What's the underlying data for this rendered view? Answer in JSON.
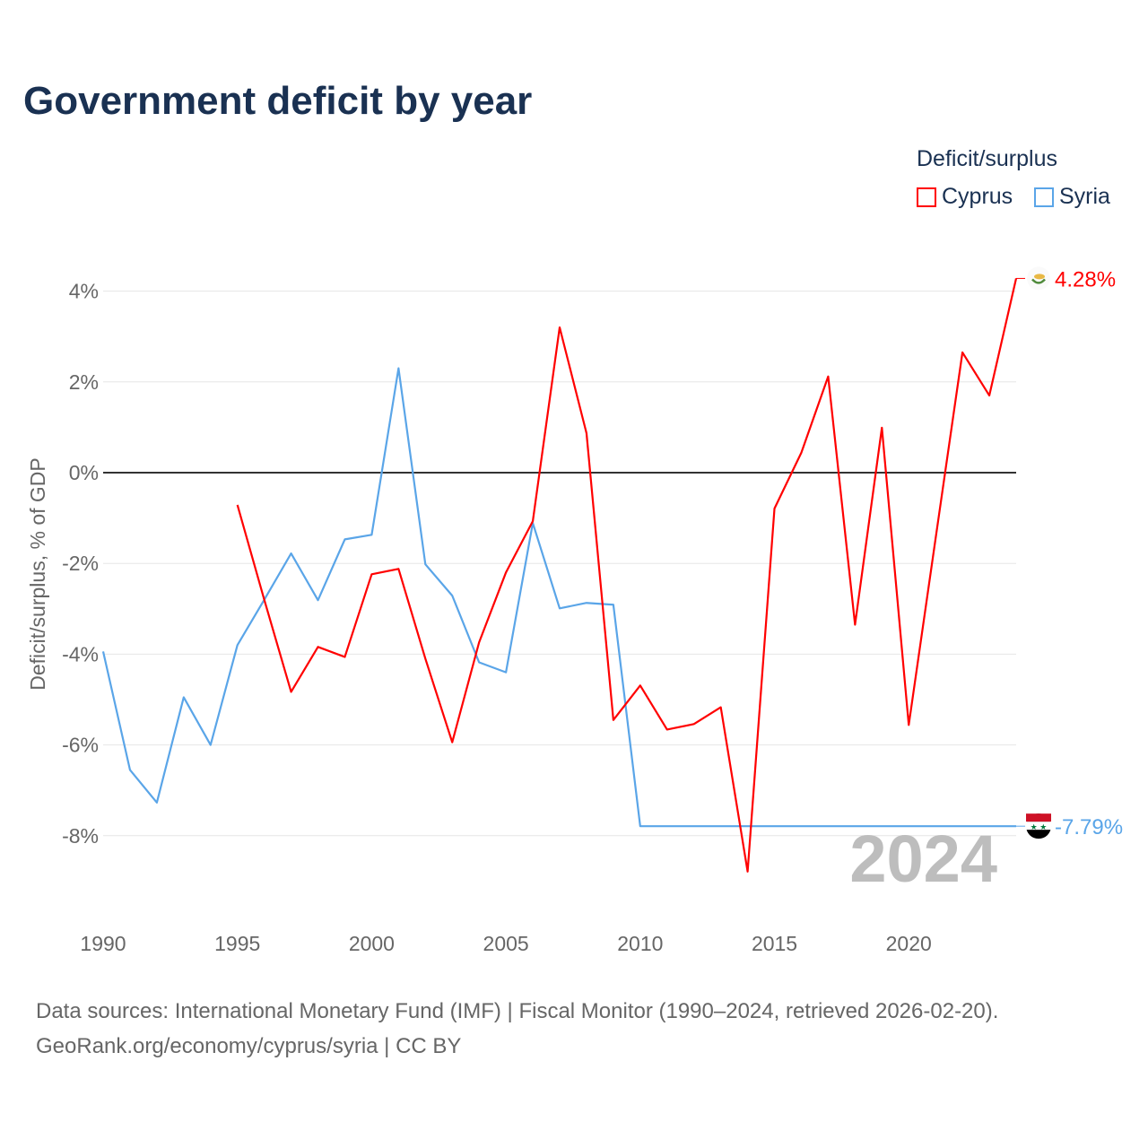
{
  "chart_data": {
    "type": "line",
    "title": "Government deficit by year",
    "ylabel": "Deficit/surplus, % of GDP",
    "xlabel": "",
    "xlim": [
      1990,
      2024
    ],
    "ylim": [
      -9.6,
      4.6
    ],
    "yticks": [
      4,
      2,
      0,
      -2,
      -4,
      -6,
      -8
    ],
    "ytick_labels": [
      "4%",
      "2%",
      "0%",
      "-2%",
      "-4%",
      "-6%",
      "-8%"
    ],
    "xticks": [
      1990,
      1995,
      2000,
      2005,
      2010,
      2015,
      2020
    ],
    "xtick_labels": [
      "1990",
      "1995",
      "2000",
      "2005",
      "2010",
      "2015",
      "2020"
    ],
    "grid": true,
    "legend": {
      "title": "Deficit/surplus",
      "position": "top-right"
    },
    "year_watermark": "2024",
    "series": [
      {
        "name": "Cyprus",
        "color": "#ff0000",
        "end_label": "4.28%",
        "flag": "cyprus",
        "x": [
          1995,
          1996,
          1997,
          1998,
          1999,
          2000,
          2001,
          2002,
          2003,
          2004,
          2005,
          2006,
          2007,
          2008,
          2009,
          2010,
          2011,
          2012,
          2013,
          2014,
          2015,
          2016,
          2017,
          2018,
          2019,
          2020,
          2021,
          2022,
          2023,
          2024
        ],
        "values": [
          -0.71,
          -2.8,
          -4.83,
          -3.84,
          -4.06,
          -2.24,
          -2.12,
          -4.1,
          -5.94,
          -3.74,
          -2.2,
          -1.07,
          3.2,
          0.87,
          -5.45,
          -4.69,
          -5.66,
          -5.54,
          -5.17,
          -8.79,
          -0.79,
          0.44,
          2.12,
          -3.35,
          0.99,
          -5.56,
          -1.45,
          2.65,
          1.7,
          4.28
        ]
      },
      {
        "name": "Syria",
        "color": "#5aa5e8",
        "end_label": "-7.79%",
        "flag": "syria",
        "x": [
          1990,
          1991,
          1992,
          1993,
          1994,
          1995,
          1996,
          1997,
          1998,
          1999,
          2000,
          2001,
          2002,
          2003,
          2004,
          2005,
          2006,
          2007,
          2008,
          2009,
          2010,
          2011,
          2012,
          2013,
          2014,
          2015,
          2016,
          2017,
          2018,
          2019,
          2020,
          2021,
          2022,
          2023,
          2024
        ],
        "values": [
          -3.94,
          -6.55,
          -7.27,
          -4.95,
          -6.0,
          -3.8,
          -2.8,
          -1.78,
          -2.81,
          -1.47,
          -1.37,
          2.3,
          -2.02,
          -2.71,
          -4.18,
          -4.4,
          -1.11,
          -2.99,
          -2.87,
          -2.91,
          -7.79,
          -7.79,
          -7.79,
          -7.79,
          -7.79,
          -7.79,
          -7.79,
          -7.79,
          -7.79,
          -7.79,
          -7.79,
          -7.79,
          -7.79,
          -7.79,
          -7.79
        ]
      }
    ]
  },
  "source": {
    "line1": "Data sources: International Monetary Fund (IMF) | Fiscal Monitor (1990–2024, retrieved 2026-02-20).",
    "line2": "GeoRank.org/economy/cyprus/syria | CC BY"
  }
}
